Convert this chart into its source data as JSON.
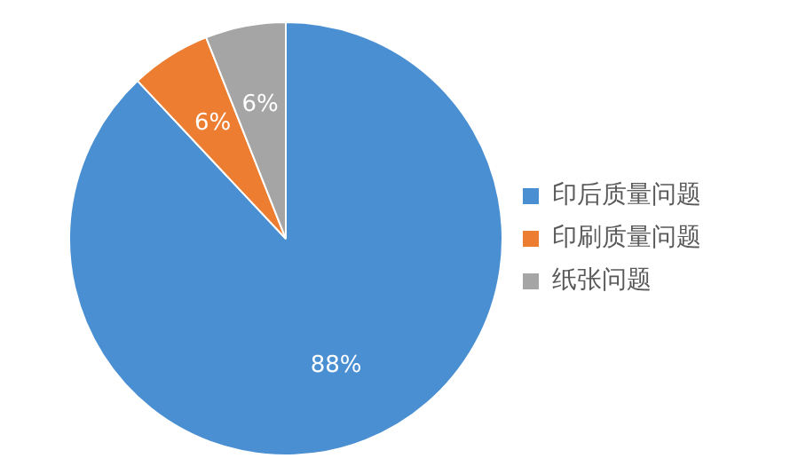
{
  "chart_data": {
    "type": "pie",
    "categories": [
      "印后质量问题",
      "印刷质量问题",
      "纸张问题"
    ],
    "values": [
      88,
      6,
      6
    ],
    "colors": [
      "#4a8fd2",
      "#ed7d31",
      "#a5a5a5"
    ],
    "value_labels": [
      "88%",
      "6%",
      "6%"
    ],
    "legend": "right"
  }
}
